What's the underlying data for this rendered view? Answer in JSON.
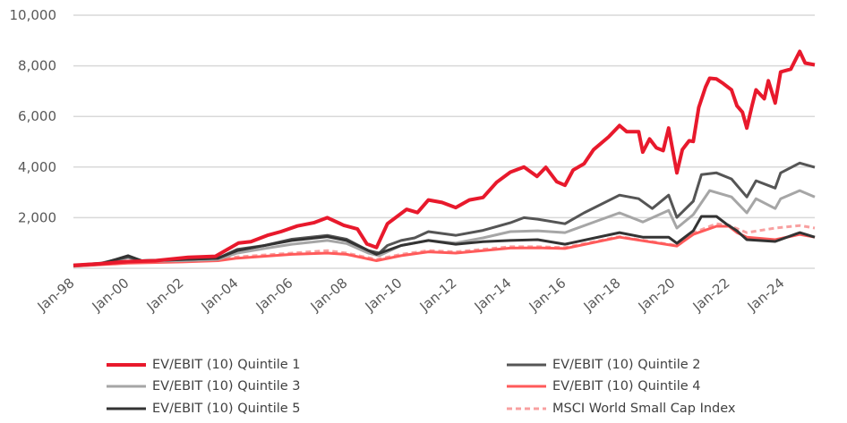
{
  "chart_data": {
    "type": "line",
    "title": "",
    "xlabel": "",
    "ylabel": "",
    "ylim": [
      0,
      10000
    ],
    "xlim": [
      1998,
      2025.15
    ],
    "grid": true,
    "legend_position": "bottom",
    "y_ticks": [
      {
        "value": 0,
        "label": ""
      },
      {
        "value": 2000,
        "label": "2,000"
      },
      {
        "value": 4000,
        "label": "4,000"
      },
      {
        "value": 6000,
        "label": "6,000"
      },
      {
        "value": 8000,
        "label": "8,000"
      },
      {
        "value": 10000,
        "label": "10,000"
      }
    ],
    "x_ticks": [
      {
        "value": 1998,
        "label": "Jan-98"
      },
      {
        "value": 2000,
        "label": "Jan-00"
      },
      {
        "value": 2002,
        "label": "Jan-02"
      },
      {
        "value": 2004,
        "label": "Jan-04"
      },
      {
        "value": 2006,
        "label": "Jan-06"
      },
      {
        "value": 2008,
        "label": "Jan-08"
      },
      {
        "value": 2010,
        "label": "Jan-10"
      },
      {
        "value": 2012,
        "label": "Jan-12"
      },
      {
        "value": 2014,
        "label": "Jan-14"
      },
      {
        "value": 2016,
        "label": "Jan-16"
      },
      {
        "value": 2018,
        "label": "Jan-18"
      },
      {
        "value": 2020,
        "label": "Jan-20"
      },
      {
        "value": 2022,
        "label": "Jan-22"
      },
      {
        "value": 2024,
        "label": "Jan-24"
      }
    ],
    "series": [
      {
        "name": "EV/EBIT (10) Quintile 1",
        "color": "#e8192c",
        "width": 4,
        "dash": false,
        "points": [
          [
            1998,
            120
          ],
          [
            1999,
            180
          ],
          [
            1999.9,
            260
          ],
          [
            2001,
            300
          ],
          [
            2002.2,
            430
          ],
          [
            2003.2,
            475
          ],
          [
            2004.05,
            1000
          ],
          [
            2004.5,
            1050
          ],
          [
            2005.1,
            1300
          ],
          [
            2005.6,
            1450
          ],
          [
            2006.2,
            1670
          ],
          [
            2006.8,
            1800
          ],
          [
            2007.3,
            2000
          ],
          [
            2007.9,
            1700
          ],
          [
            2008.4,
            1550
          ],
          [
            2008.75,
            960
          ],
          [
            2009.1,
            820
          ],
          [
            2009.5,
            1760
          ],
          [
            2010.2,
            2330
          ],
          [
            2010.6,
            2200
          ],
          [
            2011,
            2700
          ],
          [
            2011.5,
            2600
          ],
          [
            2012,
            2400
          ],
          [
            2012.5,
            2700
          ],
          [
            2013,
            2800
          ],
          [
            2013.5,
            3400
          ],
          [
            2014,
            3800
          ],
          [
            2014.5,
            4000
          ],
          [
            2014.98,
            3630
          ],
          [
            2015.3,
            3990
          ],
          [
            2015.7,
            3420
          ],
          [
            2016,
            3280
          ],
          [
            2016.3,
            3880
          ],
          [
            2016.7,
            4130
          ],
          [
            2017.05,
            4690
          ],
          [
            2017.6,
            5190
          ],
          [
            2018,
            5640
          ],
          [
            2018.26,
            5400
          ],
          [
            2018.7,
            5400
          ],
          [
            2018.85,
            4590
          ],
          [
            2019.1,
            5110
          ],
          [
            2019.35,
            4760
          ],
          [
            2019.6,
            4650
          ],
          [
            2019.8,
            5540
          ],
          [
            2020.1,
            3770
          ],
          [
            2020.3,
            4690
          ],
          [
            2020.55,
            5040
          ],
          [
            2020.7,
            5010
          ],
          [
            2020.9,
            6350
          ],
          [
            2021.15,
            7160
          ],
          [
            2021.3,
            7510
          ],
          [
            2021.55,
            7480
          ],
          [
            2021.8,
            7300
          ],
          [
            2022.1,
            7050
          ],
          [
            2022.3,
            6420
          ],
          [
            2022.5,
            6170
          ],
          [
            2022.66,
            5540
          ],
          [
            2022.85,
            6420
          ],
          [
            2023,
            7050
          ],
          [
            2023.3,
            6700
          ],
          [
            2023.45,
            7410
          ],
          [
            2023.7,
            6530
          ],
          [
            2023.9,
            7760
          ],
          [
            2024.27,
            7870
          ],
          [
            2024.6,
            8570
          ],
          [
            2024.8,
            8110
          ],
          [
            2025.15,
            8040
          ]
        ]
      },
      {
        "name": "EV/EBIT (10) Quintile 2",
        "color": "#555555",
        "width": 3,
        "dash": false,
        "points": [
          [
            1998,
            120
          ],
          [
            1999,
            200
          ],
          [
            2000,
            450
          ],
          [
            2000.5,
            300
          ],
          [
            2001.5,
            320
          ],
          [
            2002,
            350
          ],
          [
            2003.3,
            400
          ],
          [
            2004,
            750
          ],
          [
            2005,
            900
          ],
          [
            2006,
            1150
          ],
          [
            2007.3,
            1300
          ],
          [
            2008,
            1150
          ],
          [
            2008.8,
            700
          ],
          [
            2009.2,
            600
          ],
          [
            2009.5,
            900
          ],
          [
            2010,
            1100
          ],
          [
            2010.5,
            1200
          ],
          [
            2011,
            1450
          ],
          [
            2012,
            1300
          ],
          [
            2013,
            1500
          ],
          [
            2014,
            1800
          ],
          [
            2014.5,
            2000
          ],
          [
            2015,
            1940
          ],
          [
            2016,
            1760
          ],
          [
            2016.7,
            2190
          ],
          [
            2018,
            2890
          ],
          [
            2018.7,
            2750
          ],
          [
            2019.2,
            2360
          ],
          [
            2019.8,
            2890
          ],
          [
            2020.1,
            2010
          ],
          [
            2020.7,
            2650
          ],
          [
            2021,
            3700
          ],
          [
            2021.55,
            3770
          ],
          [
            2022.1,
            3530
          ],
          [
            2022.66,
            2820
          ],
          [
            2023,
            3460
          ],
          [
            2023.7,
            3170
          ],
          [
            2023.9,
            3770
          ],
          [
            2024.6,
            4160
          ],
          [
            2025.15,
            3990
          ]
        ]
      },
      {
        "name": "EV/EBIT (10) Quintile 3",
        "color": "#a6a6a6",
        "width": 3,
        "dash": false,
        "points": [
          [
            1998,
            100
          ],
          [
            1999,
            180
          ],
          [
            2000,
            420
          ],
          [
            2000.5,
            280
          ],
          [
            2002,
            300
          ],
          [
            2003.3,
            350
          ],
          [
            2004,
            600
          ],
          [
            2005,
            780
          ],
          [
            2006,
            950
          ],
          [
            2007.3,
            1100
          ],
          [
            2008,
            980
          ],
          [
            2008.8,
            600
          ],
          [
            2009.2,
            500
          ],
          [
            2010,
            900
          ],
          [
            2011,
            1100
          ],
          [
            2012,
            1000
          ],
          [
            2013,
            1200
          ],
          [
            2014,
            1450
          ],
          [
            2015,
            1480
          ],
          [
            2016,
            1410
          ],
          [
            2018,
            2190
          ],
          [
            2018.85,
            1830
          ],
          [
            2019.8,
            2290
          ],
          [
            2020.1,
            1590
          ],
          [
            2020.7,
            2120
          ],
          [
            2021.3,
            3070
          ],
          [
            2022.1,
            2820
          ],
          [
            2022.66,
            2190
          ],
          [
            2023,
            2750
          ],
          [
            2023.7,
            2360
          ],
          [
            2023.9,
            2750
          ],
          [
            2024.6,
            3070
          ],
          [
            2025.15,
            2820
          ]
        ]
      },
      {
        "name": "EV/EBIT (10) Quintile 4",
        "color": "#ff5a5a",
        "width": 3,
        "dash": false,
        "points": [
          [
            1998,
            80
          ],
          [
            2000,
            200
          ],
          [
            2002,
            250
          ],
          [
            2003.3,
            300
          ],
          [
            2004,
            400
          ],
          [
            2006,
            550
          ],
          [
            2007.3,
            600
          ],
          [
            2008,
            550
          ],
          [
            2009.1,
            300
          ],
          [
            2010,
            500
          ],
          [
            2011,
            650
          ],
          [
            2012,
            600
          ],
          [
            2013,
            700
          ],
          [
            2014,
            800
          ],
          [
            2015,
            810
          ],
          [
            2016,
            780
          ],
          [
            2018,
            1230
          ],
          [
            2020.1,
            880
          ],
          [
            2020.7,
            1340
          ],
          [
            2021.55,
            1660
          ],
          [
            2022,
            1660
          ],
          [
            2022.3,
            1410
          ],
          [
            2022.66,
            1230
          ],
          [
            2023.7,
            1130
          ],
          [
            2024.6,
            1340
          ],
          [
            2025.15,
            1230
          ]
        ]
      },
      {
        "name": "EV/EBIT (10) Quintile 5",
        "color": "#333333",
        "width": 3,
        "dash": false,
        "points": [
          [
            1998,
            100
          ],
          [
            1999,
            170
          ],
          [
            2000,
            500
          ],
          [
            2000.5,
            300
          ],
          [
            2002,
            350
          ],
          [
            2003.3,
            400
          ],
          [
            2004,
            700
          ],
          [
            2006,
            1100
          ],
          [
            2007.3,
            1250
          ],
          [
            2008,
            1100
          ],
          [
            2009.1,
            550
          ],
          [
            2010,
            900
          ],
          [
            2011,
            1100
          ],
          [
            2012,
            950
          ],
          [
            2013,
            1050
          ],
          [
            2014,
            1100
          ],
          [
            2015,
            1130
          ],
          [
            2016,
            950
          ],
          [
            2018,
            1410
          ],
          [
            2018.85,
            1230
          ],
          [
            2019.8,
            1230
          ],
          [
            2020.1,
            990
          ],
          [
            2020.7,
            1480
          ],
          [
            2021,
            2050
          ],
          [
            2021.55,
            2050
          ],
          [
            2021.9,
            1760
          ],
          [
            2022.3,
            1480
          ],
          [
            2022.66,
            1130
          ],
          [
            2023.7,
            1060
          ],
          [
            2024.6,
            1410
          ],
          [
            2025.15,
            1230
          ]
        ]
      },
      {
        "name": "MSCI World Small Cap Index",
        "color": "#f8a0a0",
        "width": 3,
        "dash": true,
        "points": [
          [
            1998,
            90
          ],
          [
            2000,
            220
          ],
          [
            2002,
            270
          ],
          [
            2003.3,
            320
          ],
          [
            2004,
            450
          ],
          [
            2006,
            600
          ],
          [
            2007.3,
            700
          ],
          [
            2008,
            600
          ],
          [
            2009.1,
            350
          ],
          [
            2010,
            550
          ],
          [
            2011,
            700
          ],
          [
            2012,
            650
          ],
          [
            2013,
            750
          ],
          [
            2014,
            850
          ],
          [
            2015,
            850
          ],
          [
            2016,
            820
          ],
          [
            2018,
            1250
          ],
          [
            2020.1,
            900
          ],
          [
            2020.7,
            1400
          ],
          [
            2021.55,
            1760
          ],
          [
            2022,
            1700
          ],
          [
            2022.66,
            1410
          ],
          [
            2023.7,
            1590
          ],
          [
            2024.6,
            1690
          ],
          [
            2025.15,
            1590
          ]
        ]
      }
    ]
  }
}
